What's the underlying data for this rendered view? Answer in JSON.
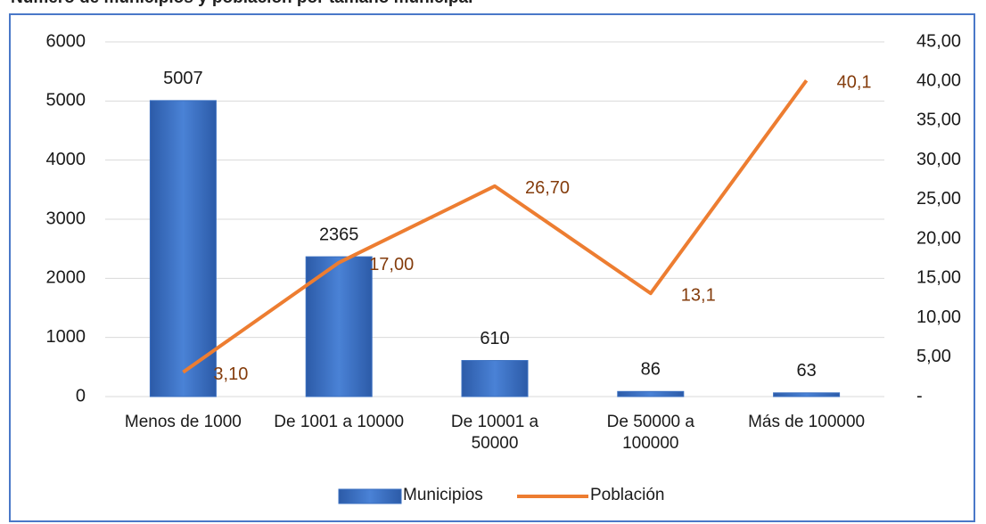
{
  "chart_data": {
    "type": "bar_line",
    "title": "Número de municipios y población por tamaño municipal",
    "categories": [
      "Menos de 1000",
      "De 1001 a 10000",
      "De 10001 a 50000",
      "De 50000 a 100000",
      "Más de 100000"
    ],
    "series": [
      {
        "name": "Municipios",
        "type": "bar",
        "color": "#3a6fc0",
        "values": [
          5007,
          2365,
          610,
          86,
          63
        ]
      },
      {
        "name": "Población",
        "type": "line",
        "axis": "y2",
        "color": "#ed7d31",
        "label_color": "#843c0c",
        "values": [
          3.1,
          17.0,
          26.7,
          13.1,
          40.1
        ],
        "value_labels": [
          "3,10",
          "17,00",
          "26,70",
          "13,1",
          "40,1"
        ]
      }
    ],
    "ylim": [
      0,
      6000
    ],
    "yticks": [
      0,
      1000,
      2000,
      3000,
      4000,
      5000,
      6000
    ],
    "y2lim": [
      0,
      45
    ],
    "y2ticks": [
      {
        "value": 0,
        "label": "-"
      },
      {
        "value": 5,
        "label": "5,00"
      },
      {
        "value": 10,
        "label": "10,00"
      },
      {
        "value": 15,
        "label": "15,00"
      },
      {
        "value": 20,
        "label": "20,00"
      },
      {
        "value": 25,
        "label": "25,00"
      },
      {
        "value": 30,
        "label": "30,00"
      },
      {
        "value": 35,
        "label": "35,00"
      },
      {
        "value": 40,
        "label": "40,00"
      },
      {
        "value": 45,
        "label": "45,00"
      }
    ],
    "grid": true,
    "legend": "bottom"
  }
}
